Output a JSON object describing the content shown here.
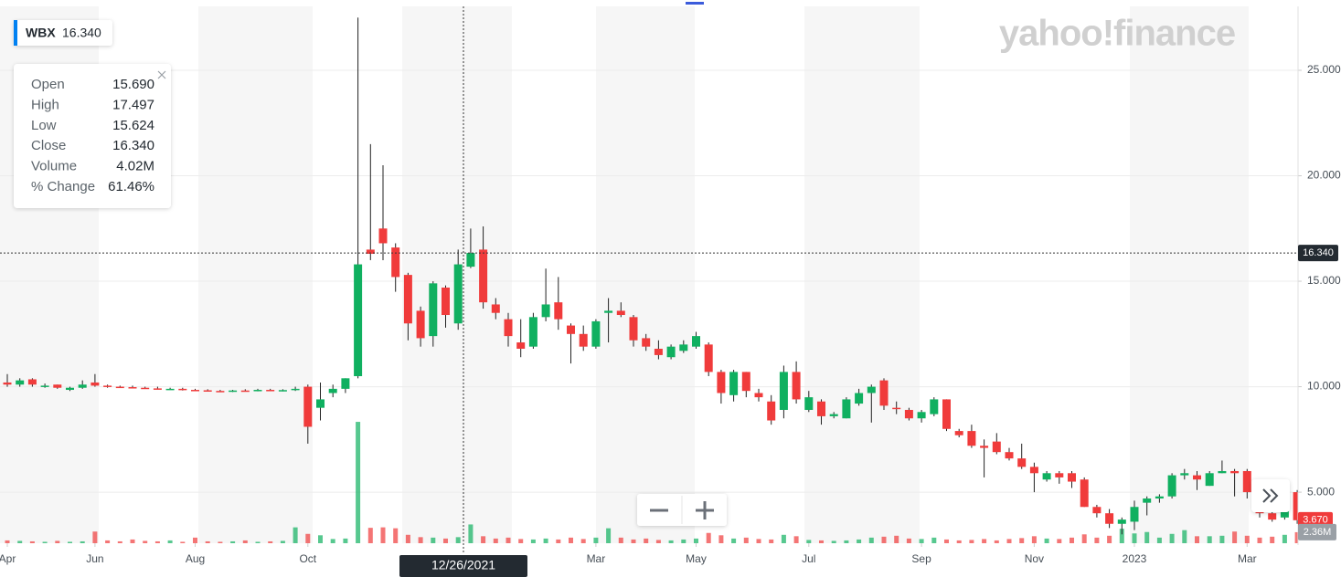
{
  "logo": "yahoo!finance",
  "chart_data": {
    "type": "candlestick",
    "symbol": "WBX",
    "up_color": "#10b060",
    "down_color": "#f03b3b",
    "grid": true,
    "categories": [
      "Apr",
      null,
      null,
      null,
      null,
      null,
      null,
      "Jun",
      null,
      null,
      null,
      null,
      null,
      null,
      null,
      "Aug",
      null,
      null,
      null,
      null,
      null,
      null,
      null,
      null,
      "Oct",
      null,
      null,
      null,
      null,
      null,
      null,
      null,
      null,
      null,
      null,
      null,
      null,
      null,
      null,
      null,
      null,
      null,
      null,
      null,
      null,
      null,
      null,
      "Mar",
      null,
      null,
      null,
      null,
      null,
      null,
      null,
      "May",
      null,
      null,
      null,
      null,
      null,
      null,
      null,
      null,
      "Jul",
      null,
      null,
      null,
      null,
      null,
      null,
      null,
      null,
      "Sep",
      null,
      null,
      null,
      null,
      null,
      null,
      null,
      null,
      "Nov",
      null,
      null,
      null,
      null,
      null,
      null,
      null,
      "2023",
      null,
      null,
      null,
      null,
      null,
      null,
      null,
      null,
      "Mar",
      null,
      null,
      null,
      null
    ],
    "open": [
      10.2,
      10.1,
      10.35,
      10.0,
      10.1,
      9.85,
      9.95,
      10.2,
      10.05,
      10.0,
      9.98,
      9.95,
      9.92,
      9.88,
      9.9,
      9.85,
      9.83,
      9.8,
      9.78,
      9.82,
      9.8,
      9.85,
      9.82,
      9.84,
      10.0,
      9.0,
      9.7,
      9.9,
      10.5,
      16.5,
      17.5,
      16.6,
      15.3,
      13.6,
      12.4,
      14.7,
      13.0,
      15.69,
      16.5,
      13.9,
      13.2,
      12.1,
      11.9,
      13.3,
      14.0,
      12.9,
      12.5,
      11.9,
      13.5,
      13.6,
      13.3,
      12.3,
      11.8,
      11.4,
      11.7,
      11.9,
      12.0,
      10.7,
      9.6,
      10.7,
      9.7,
      9.3,
      8.9,
      10.7,
      8.9,
      9.3,
      8.6,
      8.5,
      9.2,
      9.7,
      10.3,
      9.0,
      8.9,
      8.5,
      8.7,
      9.4,
      7.9,
      7.9,
      7.2,
      7.4,
      6.9,
      6.6,
      6.2,
      5.6,
      5.9,
      5.9,
      5.6,
      4.3,
      4.0,
      3.5,
      3.6,
      4.5,
      4.7,
      4.8,
      5.8,
      5.8,
      5.3,
      5.9,
      6.0,
      6.0,
      4.8,
      4.0,
      3.8,
      5.0
    ],
    "high": [
      10.6,
      10.4,
      10.4,
      10.15,
      10.1,
      10.0,
      10.3,
      10.6,
      10.1,
      10.05,
      10.05,
      10.0,
      10.0,
      9.95,
      9.95,
      9.9,
      9.88,
      9.85,
      9.85,
      9.88,
      9.9,
      9.9,
      9.88,
      10.0,
      10.1,
      10.2,
      10.1,
      10.4,
      27.5,
      21.5,
      20.5,
      16.8,
      15.4,
      13.8,
      15.0,
      14.8,
      16.5,
      17.497,
      17.6,
      14.2,
      13.5,
      13.2,
      13.5,
      15.6,
      15.2,
      13.0,
      12.9,
      13.2,
      14.2,
      14.0,
      13.4,
      12.5,
      12.2,
      12.0,
      12.2,
      12.6,
      12.1,
      10.8,
      10.8,
      10.7,
      9.9,
      9.6,
      11.0,
      11.2,
      9.8,
      9.4,
      8.8,
      9.5,
      9.9,
      10.1,
      10.4,
      9.3,
      9.0,
      8.9,
      9.5,
      9.4,
      8.0,
      8.2,
      7.5,
      7.8,
      7.1,
      7.3,
      6.4,
      6.0,
      6.0,
      6.0,
      5.7,
      4.4,
      4.2,
      3.8,
      4.6,
      4.8,
      4.9,
      5.9,
      6.1,
      6.0,
      6.0,
      6.5,
      6.1,
      6.1,
      4.9,
      4.3,
      5.0,
      5.1
    ],
    "low": [
      10.0,
      10.0,
      10.0,
      9.95,
      9.9,
      9.8,
      9.9,
      10.0,
      9.95,
      9.95,
      9.92,
      9.9,
      9.88,
      9.85,
      9.82,
      9.8,
      9.78,
      9.75,
      9.75,
      9.78,
      9.78,
      9.8,
      9.78,
      9.8,
      7.3,
      8.4,
      9.5,
      9.7,
      10.4,
      16.0,
      16.0,
      14.5,
      12.2,
      11.9,
      11.9,
      12.8,
      12.7,
      15.624,
      13.7,
      13.2,
      11.9,
      11.4,
      11.8,
      13.1,
      12.7,
      11.1,
      11.7,
      11.8,
      12.1,
      13.3,
      11.9,
      11.7,
      11.3,
      11.3,
      11.6,
      11.8,
      10.5,
      9.2,
      9.3,
      9.5,
      9.3,
      8.2,
      8.5,
      9.2,
      8.8,
      8.2,
      8.5,
      8.5,
      9.1,
      8.3,
      8.9,
      8.7,
      8.4,
      8.3,
      8.6,
      7.9,
      7.6,
      7.1,
      5.7,
      6.8,
      6.5,
      6.1,
      5.0,
      5.5,
      5.4,
      5.2,
      4.3,
      3.8,
      3.3,
      3.0,
      3.2,
      3.9,
      4.5,
      4.7,
      5.6,
      5.1,
      5.3,
      5.9,
      4.8,
      4.7,
      3.8,
      3.6,
      3.7,
      3.5
    ],
    "close": [
      10.1,
      10.3,
      10.1,
      10.05,
      9.95,
      9.95,
      10.1,
      10.05,
      10.0,
      9.98,
      9.95,
      9.92,
      9.9,
      9.9,
      9.85,
      9.83,
      9.8,
      9.78,
      9.82,
      9.8,
      9.85,
      9.82,
      9.84,
      9.9,
      8.1,
      9.4,
      9.9,
      10.4,
      15.8,
      16.3,
      16.8,
      15.2,
      13.0,
      12.3,
      14.9,
      13.4,
      15.8,
      16.34,
      14.0,
      13.5,
      12.4,
      11.8,
      13.3,
      13.9,
      13.2,
      12.5,
      11.9,
      13.1,
      13.6,
      13.4,
      12.2,
      11.9,
      11.5,
      11.9,
      12.0,
      12.4,
      10.7,
      9.7,
      10.7,
      9.8,
      9.5,
      8.4,
      10.7,
      9.4,
      9.5,
      8.6,
      8.7,
      9.4,
      9.7,
      10.0,
      9.1,
      8.95,
      8.5,
      8.8,
      9.4,
      8.0,
      7.7,
      7.2,
      7.1,
      6.9,
      6.6,
      6.2,
      5.9,
      5.9,
      5.7,
      5.5,
      4.3,
      4.0,
      3.5,
      3.7,
      4.3,
      4.7,
      4.8,
      5.8,
      5.9,
      5.6,
      5.9,
      6.0,
      5.9,
      5.0,
      4.0,
      3.7,
      4.9,
      3.67
    ],
    "volume": [
      0.6,
      0.5,
      0.4,
      0.3,
      0.5,
      0.3,
      0.4,
      2.5,
      0.6,
      0.4,
      0.8,
      0.5,
      0.4,
      0.6,
      0.3,
      1.2,
      0.4,
      0.3,
      0.4,
      0.6,
      0.3,
      0.4,
      0.5,
      3.4,
      2.0,
      1.7,
      0.9,
      1.0,
      26.0,
      3.3,
      3.4,
      3.2,
      1.8,
      1.3,
      1.2,
      1.0,
      1.3,
      4.02,
      1.5,
      1.0,
      1.2,
      0.9,
      0.8,
      1.0,
      0.8,
      1.2,
      0.9,
      1.2,
      3.2,
      1.2,
      0.8,
      1.0,
      0.7,
      0.6,
      0.8,
      1.0,
      2.2,
      1.7,
      1.0,
      1.2,
      0.9,
      0.8,
      1.8,
      1.5,
      0.7,
      0.6,
      0.5,
      0.6,
      0.8,
      1.2,
      1.4,
      1.6,
      1.0,
      0.9,
      1.2,
      0.8,
      0.6,
      0.7,
      0.9,
      0.6,
      0.9,
      1.1,
      1.5,
      1.0,
      0.9,
      1.2,
      1.9,
      1.2,
      1.6,
      3.1,
      2.1,
      2.4,
      1.2,
      2.0,
      2.8,
      1.5,
      1.5,
      1.6,
      2.5,
      1.6,
      1.2,
      1.4,
      1.8,
      2.36
    ],
    "volume_lim": [
      0,
      115
    ],
    "ylim": [
      2.58,
      28.03
    ],
    "yticks": [
      {
        "value": 5,
        "label": "5.000"
      },
      {
        "value": 10,
        "label": "10.000"
      },
      {
        "value": 15,
        "label": "15.000"
      },
      {
        "value": 20,
        "label": "20.000"
      },
      {
        "value": 25,
        "label": "25.000"
      }
    ],
    "last_close": {
      "value": 3.67,
      "label": "3.670"
    },
    "last_volume": {
      "value": 2.36,
      "label": "2.36M"
    },
    "crosshair": {
      "date": "12/26/2021",
      "price": {
        "value": 16.34,
        "label": "16.340"
      }
    },
    "tooltip": [
      {
        "label": "Open",
        "value": "15.690"
      },
      {
        "label": "High",
        "value": "17.497"
      },
      {
        "label": "Low",
        "value": "15.624"
      },
      {
        "label": "Close",
        "value": "16.340"
      },
      {
        "label": "Volume",
        "value": "4.02M"
      },
      {
        "label": "% Change",
        "value": "61.46%"
      }
    ]
  }
}
